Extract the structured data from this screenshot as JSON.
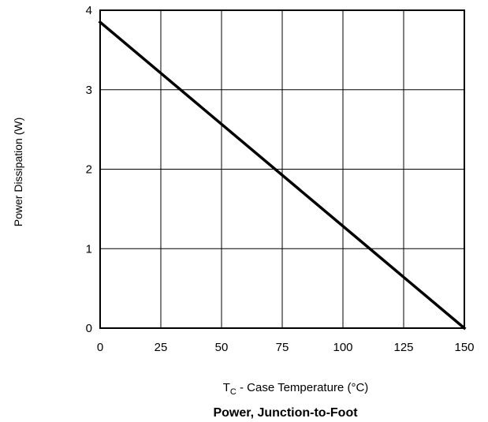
{
  "chart_data": {
    "type": "line",
    "title": "Power, Junction-to-Foot",
    "xlabel": {
      "symbol": "T",
      "subscript": "C",
      "text": " - Case Temperature (°C)"
    },
    "ylabel": "Power Dissipation (W)",
    "xlim": [
      0,
      150
    ],
    "ylim": [
      0,
      4
    ],
    "xticks": [
      0,
      25,
      50,
      75,
      100,
      125,
      150
    ],
    "yticks": [
      0,
      1,
      2,
      3,
      4
    ],
    "grid": true,
    "legend": "none",
    "series": [
      {
        "x": [
          0,
          150
        ],
        "y": [
          3.85,
          0
        ]
      }
    ],
    "colors": {
      "line": "#000000",
      "grid": "#000000",
      "frame": "#000000"
    }
  }
}
